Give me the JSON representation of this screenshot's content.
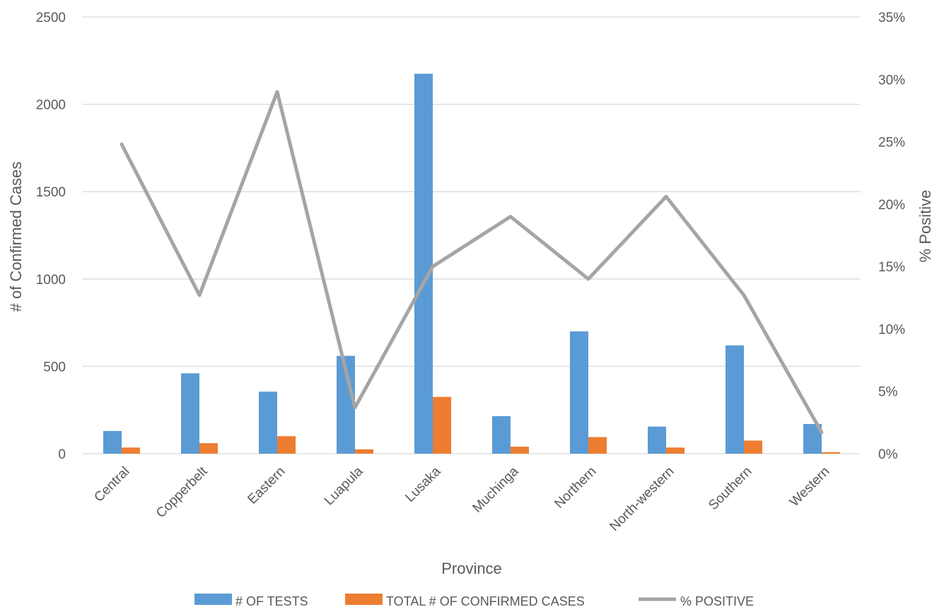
{
  "chart_data": {
    "type": "bar",
    "combo": "bar+line (secondary axis)",
    "categories": [
      "Central",
      "Copperbelt",
      "Eastern",
      "Luapula",
      "Lusaka",
      "Muchinga",
      "Northern",
      "North-western",
      "Southern",
      "Western"
    ],
    "series": [
      {
        "name": "# OF TESTS",
        "type": "bar",
        "axis": "left",
        "color": "#5b9bd5",
        "values": [
          130,
          460,
          355,
          560,
          2175,
          215,
          700,
          155,
          620,
          170
        ]
      },
      {
        "name": "TOTAL # OF CONFIRMED CASES",
        "type": "bar",
        "axis": "left",
        "color": "#ed7d31",
        "values": [
          35,
          60,
          100,
          25,
          325,
          40,
          95,
          35,
          75,
          8
        ]
      },
      {
        "name": "% POSITIVE",
        "type": "line",
        "axis": "right",
        "color": "#a5a5a5",
        "values": [
          24.8,
          12.7,
          29.0,
          3.7,
          15.0,
          19.0,
          14.0,
          20.6,
          12.7,
          1.7
        ]
      }
    ],
    "xlabel": "Province",
    "ylabel": "# of Confirmed Cases",
    "y2label": "% Positive",
    "ylim": [
      0,
      2500
    ],
    "yticks": [
      "0",
      "500",
      "1000",
      "1500",
      "2000",
      "2500"
    ],
    "y2lim": [
      0,
      35
    ],
    "y2ticks": [
      "0%",
      "5%",
      "10%",
      "15%",
      "20%",
      "25%",
      "30%",
      "35%"
    ],
    "grid": true,
    "legend_position": "bottom"
  }
}
